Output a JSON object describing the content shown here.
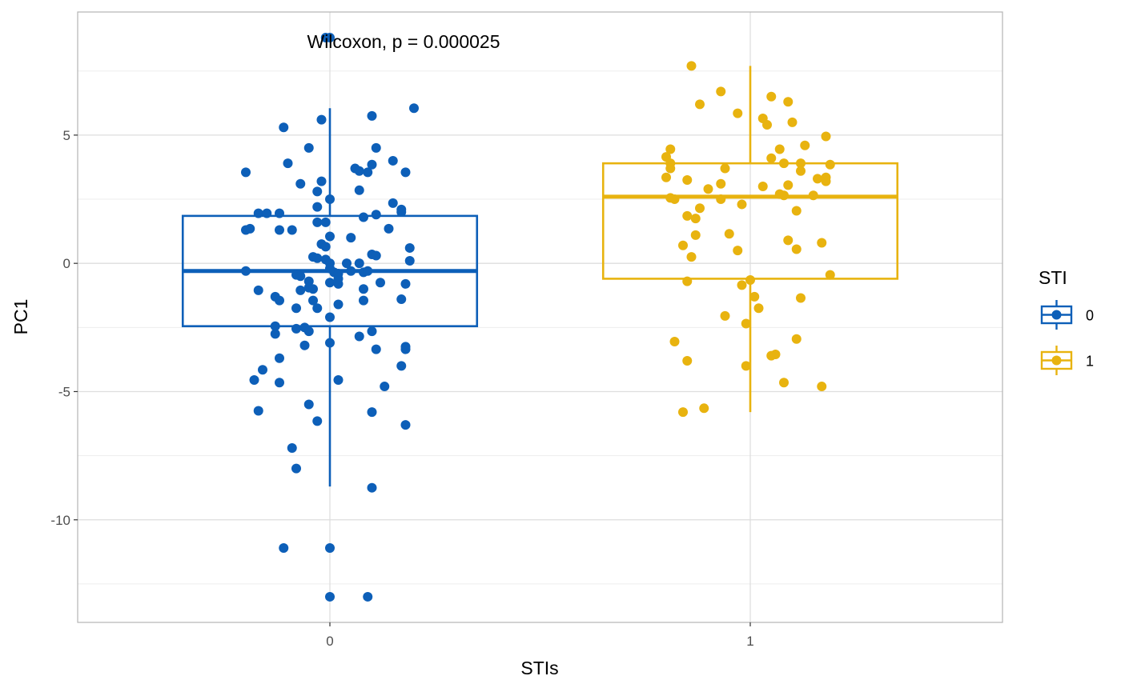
{
  "chart_data": {
    "type": "boxplot",
    "xlabel": "STIs",
    "ylabel": "PC1",
    "categories": [
      "0",
      "1"
    ],
    "ylim": [
      -14,
      9.8
    ],
    "yticks": [
      -10,
      -5,
      0,
      5
    ],
    "ytick_labels": [
      "-10",
      "-5",
      "0",
      "5"
    ],
    "grid": true,
    "annotation": "Wilcoxon, p = 0.000025",
    "legend": {
      "title": "STI",
      "placement": "right",
      "entries": [
        {
          "label": "0",
          "color": "#0d5fb8"
        },
        {
          "label": "1",
          "color": "#e8b30f"
        }
      ]
    },
    "series": [
      {
        "name": "0",
        "color": "#0d5fb8",
        "box": {
          "whisker_low": -8.7,
          "q1": -2.45,
          "median": -0.3,
          "q3": 1.85,
          "whisker_high": 6.05
        },
        "points": [
          [
            -0.01,
            8.8
          ],
          [
            0.0,
            8.8
          ],
          [
            0.2,
            6.05
          ],
          [
            -0.11,
            5.3
          ],
          [
            -0.02,
            5.6
          ],
          [
            0.1,
            5.75
          ],
          [
            -0.05,
            4.5
          ],
          [
            0.11,
            4.5
          ],
          [
            -0.1,
            3.9
          ],
          [
            0.15,
            4.0
          ],
          [
            -0.2,
            3.55
          ],
          [
            0.06,
            3.7
          ],
          [
            0.07,
            3.6
          ],
          [
            0.09,
            3.55
          ],
          [
            0.1,
            3.85
          ],
          [
            0.18,
            3.55
          ],
          [
            -0.02,
            3.2
          ],
          [
            -0.07,
            3.1
          ],
          [
            0.07,
            2.85
          ],
          [
            -0.03,
            2.8
          ],
          [
            0.0,
            2.5
          ],
          [
            0.15,
            2.35
          ],
          [
            -0.03,
            2.2
          ],
          [
            0.17,
            2.1
          ],
          [
            0.17,
            2.0
          ],
          [
            -0.17,
            1.95
          ],
          [
            -0.15,
            1.95
          ],
          [
            -0.12,
            1.95
          ],
          [
            0.11,
            1.9
          ],
          [
            0.08,
            1.8
          ],
          [
            -0.03,
            1.6
          ],
          [
            -0.01,
            1.6
          ],
          [
            -0.19,
            1.35
          ],
          [
            -0.2,
            1.3
          ],
          [
            -0.12,
            1.3
          ],
          [
            -0.09,
            1.3
          ],
          [
            0.14,
            1.35
          ],
          [
            0.0,
            1.05
          ],
          [
            0.05,
            1.0
          ],
          [
            -0.02,
            0.75
          ],
          [
            -0.01,
            0.65
          ],
          [
            0.19,
            0.6
          ],
          [
            0.1,
            0.35
          ],
          [
            0.11,
            0.3
          ],
          [
            -0.04,
            0.25
          ],
          [
            -0.03,
            0.2
          ],
          [
            -0.01,
            0.15
          ],
          [
            0.19,
            0.1
          ],
          [
            0.0,
            0.0
          ],
          [
            0.04,
            0.0
          ],
          [
            0.07,
            0.0
          ],
          [
            0.0,
            -0.2
          ],
          [
            0.01,
            -0.35
          ],
          [
            0.02,
            -0.4
          ],
          [
            0.05,
            -0.3
          ],
          [
            0.08,
            -0.35
          ],
          [
            0.09,
            -0.3
          ],
          [
            -0.2,
            -0.3
          ],
          [
            -0.08,
            -0.45
          ],
          [
            -0.07,
            -0.5
          ],
          [
            -0.05,
            -0.7
          ],
          [
            0.0,
            -0.75
          ],
          [
            0.02,
            -0.8
          ],
          [
            0.12,
            -0.75
          ],
          [
            0.18,
            -0.8
          ],
          [
            -0.05,
            -0.95
          ],
          [
            -0.04,
            -1.0
          ],
          [
            0.08,
            -1.0
          ],
          [
            -0.07,
            -1.05
          ],
          [
            -0.17,
            -1.05
          ],
          [
            0.02,
            -0.6
          ],
          [
            -0.13,
            -1.3
          ],
          [
            -0.12,
            -1.45
          ],
          [
            -0.04,
            -1.45
          ],
          [
            0.08,
            -1.45
          ],
          [
            0.17,
            -1.4
          ],
          [
            -0.08,
            -1.75
          ],
          [
            -0.03,
            -1.75
          ],
          [
            0.02,
            -1.6
          ],
          [
            0.0,
            -2.1
          ],
          [
            -0.13,
            -2.45
          ],
          [
            -0.08,
            -2.55
          ],
          [
            -0.06,
            -2.5
          ],
          [
            -0.05,
            -2.65
          ],
          [
            0.1,
            -2.65
          ],
          [
            -0.13,
            -2.75
          ],
          [
            0.07,
            -2.85
          ],
          [
            0.0,
            -3.1
          ],
          [
            -0.06,
            -3.2
          ],
          [
            0.11,
            -3.35
          ],
          [
            0.18,
            -3.25
          ],
          [
            0.18,
            -3.35
          ],
          [
            -0.12,
            -3.7
          ],
          [
            -0.16,
            -4.15
          ],
          [
            0.17,
            -4.0
          ],
          [
            -0.18,
            -4.55
          ],
          [
            -0.12,
            -4.65
          ],
          [
            0.02,
            -4.55
          ],
          [
            0.13,
            -4.8
          ],
          [
            -0.05,
            -5.5
          ],
          [
            -0.17,
            -5.75
          ],
          [
            0.1,
            -5.8
          ],
          [
            -0.03,
            -6.15
          ],
          [
            0.18,
            -6.3
          ],
          [
            -0.09,
            -7.2
          ],
          [
            -0.08,
            -8.0
          ],
          [
            0.1,
            -8.75
          ],
          [
            -0.11,
            -11.1
          ],
          [
            0.0,
            -11.1
          ],
          [
            0.0,
            -13.0
          ],
          [
            0.09,
            -13.0
          ]
        ]
      },
      {
        "name": "1",
        "color": "#e8b30f",
        "box": {
          "whisker_low": -5.8,
          "q1": -0.6,
          "median": 2.6,
          "q3": 3.9,
          "whisker_high": 7.7
        },
        "points": [
          [
            -0.14,
            7.7
          ],
          [
            -0.07,
            6.7
          ],
          [
            -0.12,
            6.2
          ],
          [
            0.05,
            6.5
          ],
          [
            0.09,
            6.3
          ],
          [
            -0.03,
            5.85
          ],
          [
            0.03,
            5.65
          ],
          [
            0.04,
            5.4
          ],
          [
            0.1,
            5.5
          ],
          [
            0.18,
            4.95
          ],
          [
            0.13,
            4.6
          ],
          [
            -0.19,
            4.45
          ],
          [
            0.07,
            4.45
          ],
          [
            -0.2,
            4.15
          ],
          [
            -0.19,
            3.9
          ],
          [
            0.05,
            4.1
          ],
          [
            0.08,
            3.9
          ],
          [
            0.12,
            3.9
          ],
          [
            -0.06,
            3.7
          ],
          [
            -0.19,
            3.7
          ],
          [
            0.12,
            3.6
          ],
          [
            0.19,
            3.85
          ],
          [
            -0.2,
            3.35
          ],
          [
            -0.15,
            3.25
          ],
          [
            0.16,
            3.3
          ],
          [
            0.18,
            3.35
          ],
          [
            0.18,
            3.2
          ],
          [
            -0.07,
            3.1
          ],
          [
            -0.1,
            2.9
          ],
          [
            0.09,
            3.05
          ],
          [
            0.03,
            3.0
          ],
          [
            -0.19,
            2.55
          ],
          [
            -0.18,
            2.5
          ],
          [
            0.07,
            2.7
          ],
          [
            0.08,
            2.65
          ],
          [
            0.15,
            2.65
          ],
          [
            -0.07,
            2.5
          ],
          [
            -0.02,
            2.3
          ],
          [
            -0.12,
            2.15
          ],
          [
            0.11,
            2.05
          ],
          [
            -0.15,
            1.85
          ],
          [
            -0.13,
            1.75
          ],
          [
            -0.13,
            1.1
          ],
          [
            -0.05,
            1.15
          ],
          [
            0.09,
            0.9
          ],
          [
            0.17,
            0.8
          ],
          [
            -0.16,
            0.7
          ],
          [
            0.11,
            0.55
          ],
          [
            -0.03,
            0.5
          ],
          [
            -0.14,
            0.25
          ],
          [
            0.19,
            -0.45
          ],
          [
            0.0,
            -0.65
          ],
          [
            -0.15,
            -0.7
          ],
          [
            -0.02,
            -0.85
          ],
          [
            0.12,
            -1.35
          ],
          [
            0.01,
            -1.3
          ],
          [
            0.02,
            -1.75
          ],
          [
            -0.06,
            -2.05
          ],
          [
            -0.01,
            -2.35
          ],
          [
            -0.18,
            -3.05
          ],
          [
            0.11,
            -2.95
          ],
          [
            0.06,
            -3.55
          ],
          [
            0.05,
            -3.6
          ],
          [
            -0.15,
            -3.8
          ],
          [
            -0.01,
            -4.0
          ],
          [
            0.08,
            -4.65
          ],
          [
            0.17,
            -4.8
          ],
          [
            -0.11,
            -5.65
          ],
          [
            -0.16,
            -5.8
          ]
        ]
      }
    ]
  }
}
